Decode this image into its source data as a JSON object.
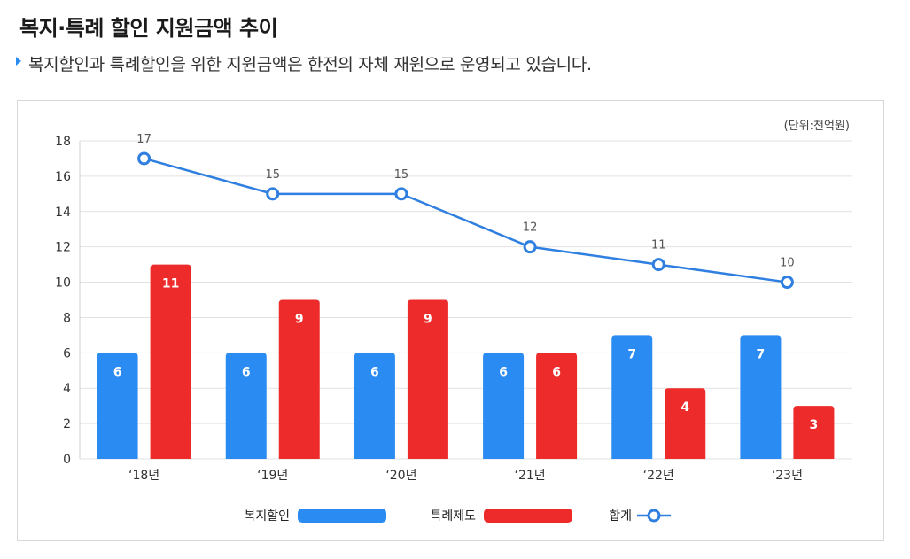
{
  "header": {
    "title": "복지·특례 할인 지원금액 추이",
    "subtitle": "복지할인과 특례할인을 위한 지원금액은 한전의 자체 재원으로 운영되고 있습니다."
  },
  "chart_data": {
    "type": "bar",
    "unit_label": "(단위:천억원)",
    "categories": [
      "‘18년",
      "‘19년",
      "‘20년",
      "‘21년",
      "‘22년",
      "‘23년"
    ],
    "ylim": [
      0,
      18
    ],
    "yticks": [
      0,
      2,
      4,
      6,
      8,
      10,
      12,
      14,
      16,
      18
    ],
    "grid": true,
    "legend_position": "bottom",
    "series": [
      {
        "name": "복지할인",
        "type": "bar",
        "color": "#2a8bf2",
        "values": [
          6,
          6,
          6,
          6,
          7,
          7
        ]
      },
      {
        "name": "특례제도",
        "type": "bar",
        "color": "#ee2b2b",
        "values": [
          11,
          9,
          9,
          6,
          4,
          3
        ]
      },
      {
        "name": "합계",
        "type": "line",
        "color": "#2f7fe0",
        "values": [
          17,
          15,
          15,
          12,
          11,
          10
        ]
      }
    ]
  }
}
